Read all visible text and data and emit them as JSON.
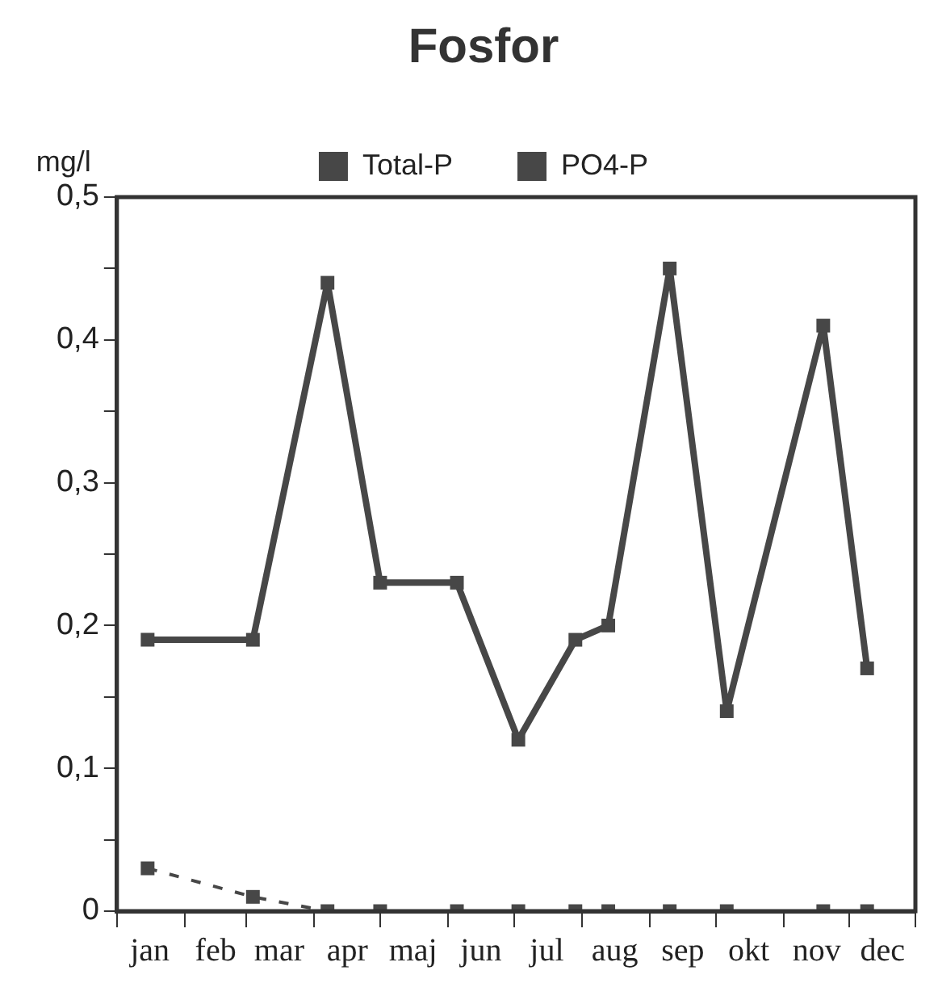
{
  "chart_data": {
    "type": "line",
    "title": "Fosfor",
    "ylabel": "mg/l",
    "xlim": [
      "--01-01",
      "--12-31"
    ],
    "xticks": [
      {
        "value": "--01-01",
        "label": null
      },
      {
        "value": "--01-16",
        "label": "jan"
      },
      {
        "value": "--02-01",
        "label": null
      },
      {
        "value": "--02-15",
        "label": "feb"
      },
      {
        "value": "--03-01",
        "label": null
      },
      {
        "value": "--03-16",
        "label": "mar"
      },
      {
        "value": "--04-01",
        "label": null
      },
      {
        "value": "--04-16",
        "label": "apr"
      },
      {
        "value": "--05-01",
        "label": null
      },
      {
        "value": "--05-16",
        "label": "maj"
      },
      {
        "value": "--06-01",
        "label": null
      },
      {
        "value": "--06-16",
        "label": "jun"
      },
      {
        "value": "--07-01",
        "label": null
      },
      {
        "value": "--07-16",
        "label": "jul"
      },
      {
        "value": "--08-01",
        "label": null
      },
      {
        "value": "--08-16",
        "label": "aug"
      },
      {
        "value": "--09-01",
        "label": null
      },
      {
        "value": "--09-16",
        "label": "sep"
      },
      {
        "value": "--10-01",
        "label": null
      },
      {
        "value": "--10-16",
        "label": "okt"
      },
      {
        "value": "--11-01",
        "label": null
      },
      {
        "value": "--11-16",
        "label": "nov"
      },
      {
        "value": "--12-01",
        "label": null
      },
      {
        "value": "--12-16",
        "label": "dec"
      },
      {
        "value": "--12-31",
        "label": null
      }
    ],
    "ylim": [
      0,
      0.5
    ],
    "yticks": [
      {
        "value": 0,
        "label": "0"
      },
      {
        "value": 0.05,
        "label": null
      },
      {
        "value": 0.1,
        "label": "0,1"
      },
      {
        "value": 0.15,
        "label": null
      },
      {
        "value": 0.2,
        "label": "0,2"
      },
      {
        "value": 0.25,
        "label": null
      },
      {
        "value": 0.3,
        "label": "0,3"
      },
      {
        "value": 0.35,
        "label": null
      },
      {
        "value": 0.4,
        "label": "0,4"
      },
      {
        "value": 0.45,
        "label": null
      },
      {
        "value": 0.5,
        "label": "0,5"
      }
    ],
    "grid": false,
    "legend": "top",
    "marker": "square",
    "series": [
      {
        "name": "Total-P",
        "color": "#474747",
        "line_style": "solid",
        "x": [
          "--01-15",
          "--03-04",
          "--04-07",
          "--05-01",
          "--06-05",
          "--07-03",
          "--07-29",
          "--08-13",
          "--09-10",
          "--10-06",
          "--11-19",
          "--12-09"
        ],
        "values": [
          0.19,
          0.19,
          0.44,
          0.23,
          0.23,
          0.12,
          0.19,
          0.2,
          0.45,
          0.14,
          0.41,
          0.17
        ]
      },
      {
        "name": "PO4-P",
        "color": "#474747",
        "line_style": "dashed",
        "x": [
          "--01-15",
          "--03-04",
          "--04-07",
          "--05-01",
          "--06-05",
          "--07-03",
          "--07-29",
          "--08-13",
          "--09-10",
          "--10-06",
          "--11-19",
          "--12-09"
        ],
        "values": [
          0.03,
          0.01,
          0,
          0,
          0,
          0,
          0,
          0,
          0,
          0,
          0,
          0
        ]
      }
    ]
  }
}
